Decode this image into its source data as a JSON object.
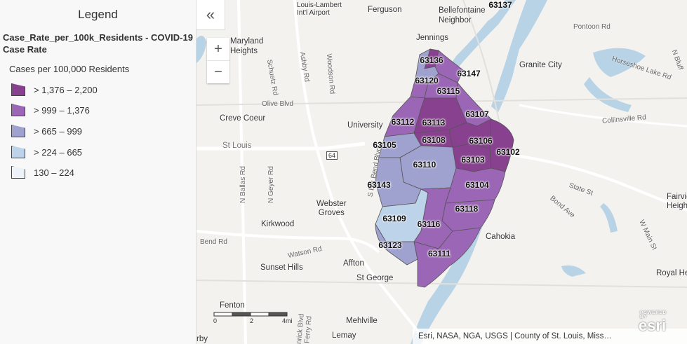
{
  "legend": {
    "title": "Legend",
    "layer_title": "Case_Rate_per_100k_Residents - COVID-19 Case Rate",
    "field_name": "Cases per 100,000 Residents",
    "classes": [
      {
        "label": "> 1,376 – 2,200",
        "color": "#88418f"
      },
      {
        "label": "> 999 – 1,376",
        "color": "#9b66b5"
      },
      {
        "label": "> 665 – 999",
        "color": "#9fa1cf"
      },
      {
        "label": "> 224 – 665",
        "color": "#bdd3e9"
      },
      {
        "label": "130 – 224",
        "color": "#eef3fa"
      }
    ]
  },
  "controls": {
    "collapse_icon": "«",
    "zoom_in": "+",
    "zoom_out": "−"
  },
  "places": {
    "louis_lambert": "Louis-Lambert\nInt'l Airport",
    "ferguson": "Ferguson",
    "bellefontaine": "Bellefontaine\nNeighbor",
    "maryland_heights": "Maryland\nHeights",
    "jennings": "Jennings",
    "pontoon": "Pontoon Rd",
    "granite_city": "Granite City",
    "horseshoe": "Horseshoe Lake Rd",
    "creve_coeur": "Creve Coeur",
    "university": "University",
    "st_louis": "St Louis",
    "collinsville": "Collinsville Rd",
    "webster_groves": "Webster\nGroves",
    "kirkwood": "Kirkwood",
    "cahokia": "Cahokia",
    "sunset_hills": "Sunset Hills",
    "affton": "Affton",
    "st_george": "St George",
    "mehlville": "Mehlville",
    "lemay": "Lemay",
    "fenton": "Fenton",
    "fairview": "Fairvie\nHeights",
    "royal_he": "Royal He",
    "n_bluff": "N Bluff",
    "state_st": "State St",
    "bond_ave": "Bond Ave",
    "w_main": "W Main St",
    "olive_blvd": "Olive Blvd",
    "watson_rd": "Watson Rd",
    "bend_rd": "Bend Rd",
    "schuetz": "Schuetz Rd",
    "ashby": "Ashby Rd",
    "woodson": "Woodson Rd",
    "n_ballas": "N Ballas Rd",
    "n_geyer": "N Geyer Rd",
    "s_big_bend": "S Big Bend Blvd",
    "kenrick": "Kenrick Blvd",
    "ferry": "Ferry Rd",
    "i64": "64",
    "corner_rby": "rby"
  },
  "zips": [
    {
      "code": "63137"
    },
    {
      "code": "63136"
    },
    {
      "code": "63147"
    },
    {
      "code": "63120"
    },
    {
      "code": "63115"
    },
    {
      "code": "63107"
    },
    {
      "code": "63112"
    },
    {
      "code": "63113"
    },
    {
      "code": "63108"
    },
    {
      "code": "63106"
    },
    {
      "code": "63105"
    },
    {
      "code": "63103"
    },
    {
      "code": "63102"
    },
    {
      "code": "63110"
    },
    {
      "code": "63104"
    },
    {
      "code": "63143"
    },
    {
      "code": "63118"
    },
    {
      "code": "63109"
    },
    {
      "code": "63116"
    },
    {
      "code": "63123"
    },
    {
      "code": "63111"
    }
  ],
  "scale": {
    "ticks": [
      "0",
      "2",
      "4mi"
    ]
  },
  "attribution": "Esri, NASA, NGA, USGS | County of St. Louis, Miss…",
  "esri": {
    "powered": "POWERED BY",
    "logo": "esri"
  },
  "colors": {
    "water": "#b8d3e6",
    "major_road": "#d6d6d6",
    "highway": "#ffffff"
  }
}
